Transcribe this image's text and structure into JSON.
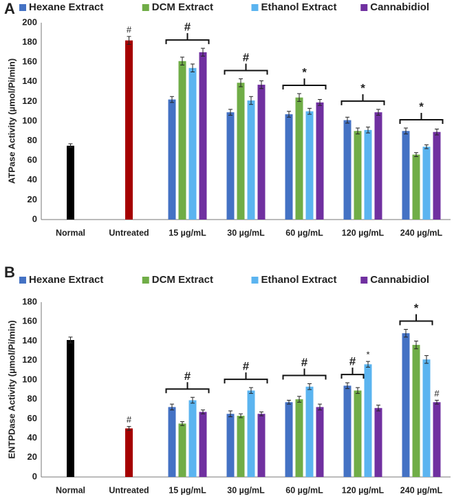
{
  "chart_data": [
    {
      "type": "bar",
      "panel_label": "A",
      "ylabel": "ATPase Activity (µmol/Pi/min)",
      "categories": [
        "Normal",
        "Untreated",
        "15 µg/mL",
        "30 µg/mL",
        "60 µg/mL",
        "120 µg/mL",
        "240 µg/mL"
      ],
      "ylim": [
        0,
        200
      ],
      "yticks": [
        0,
        20,
        40,
        60,
        80,
        100,
        120,
        140,
        160,
        180,
        200
      ],
      "control_values": [
        75,
        182
      ],
      "control_errors": [
        2,
        4
      ],
      "control_colors": [
        "#000000",
        "#a50000"
      ],
      "series": [
        {
          "name": "Hexane Extract",
          "color": "#4472c4",
          "values": [
            null,
            null,
            122,
            109,
            107,
            101,
            90
          ],
          "errors": [
            null,
            null,
            3,
            3,
            3,
            3,
            3
          ]
        },
        {
          "name": "DCM Extract",
          "color": "#70ad47",
          "values": [
            null,
            null,
            161,
            139,
            124,
            90,
            66
          ],
          "errors": [
            null,
            null,
            4,
            4,
            4,
            3,
            2
          ]
        },
        {
          "name": "Ethanol Extract",
          "color": "#5bb4f0",
          "values": [
            null,
            null,
            154,
            121,
            110,
            91,
            74
          ],
          "errors": [
            null,
            null,
            4,
            4,
            3,
            3,
            2
          ]
        },
        {
          "name": "Cannabidiol",
          "color": "#7030a0",
          "values": [
            null,
            null,
            170,
            137,
            119,
            109,
            89
          ],
          "errors": [
            null,
            null,
            4,
            4,
            3,
            3,
            3
          ]
        }
      ],
      "annotations": [
        {
          "text": "#",
          "category": 1
        },
        {
          "text": "#",
          "category": 2,
          "from": 0,
          "to": 3
        },
        {
          "text": "#",
          "category": 3,
          "from": 0,
          "to": 3
        },
        {
          "text": "*",
          "category": 4,
          "from": 0,
          "to": 3
        },
        {
          "text": "*",
          "category": 5,
          "from": 0,
          "to": 3
        },
        {
          "text": "*",
          "category": 6,
          "from": 0,
          "to": 3
        }
      ]
    },
    {
      "type": "bar",
      "panel_label": "B",
      "ylabel": "ENTPDase Activity (µmol/Pi/min)",
      "categories": [
        "Normal",
        "Untreated",
        "15 µg/mL",
        "30 µg/mL",
        "60 µg/mL",
        "120 µg/mL",
        "240 µg/mL"
      ],
      "ylim": [
        0,
        180
      ],
      "yticks": [
        0,
        20,
        40,
        60,
        80,
        100,
        120,
        140,
        160,
        180
      ],
      "control_values": [
        141,
        50
      ],
      "control_errors": [
        3,
        2
      ],
      "control_colors": [
        "#000000",
        "#a50000"
      ],
      "series": [
        {
          "name": "Hexane Extract",
          "color": "#4472c4",
          "values": [
            null,
            null,
            72,
            65,
            77,
            94,
            148
          ],
          "errors": [
            null,
            null,
            3,
            3,
            2,
            3,
            4
          ]
        },
        {
          "name": "DCM Extract",
          "color": "#70ad47",
          "values": [
            null,
            null,
            55,
            63,
            80,
            89,
            136
          ],
          "errors": [
            null,
            null,
            2,
            2,
            3,
            3,
            4
          ]
        },
        {
          "name": "Ethanol Extract",
          "color": "#5bb4f0",
          "values": [
            null,
            null,
            79,
            89,
            93,
            116,
            121
          ],
          "errors": [
            null,
            null,
            3,
            3,
            3,
            3,
            4
          ]
        },
        {
          "name": "Cannabidiol",
          "color": "#7030a0",
          "values": [
            null,
            null,
            67,
            65,
            72,
            71,
            77
          ],
          "errors": [
            null,
            null,
            2,
            2,
            3,
            3,
            2
          ]
        }
      ],
      "annotations": [
        {
          "text": "#",
          "category": 1
        },
        {
          "text": "#",
          "category": 2,
          "from": 0,
          "to": 3
        },
        {
          "text": "#",
          "category": 3,
          "from": 0,
          "to": 3
        },
        {
          "text": "#",
          "category": 4,
          "from": 0,
          "to": 3
        },
        {
          "text": "#",
          "category": 5,
          "from": 0,
          "to": 1
        },
        {
          "text": "*",
          "category": 5,
          "series": 2
        },
        {
          "text": "*",
          "category": 6,
          "from": 0,
          "to": 2
        },
        {
          "text": "#",
          "category": 6,
          "series": 3
        }
      ]
    }
  ]
}
